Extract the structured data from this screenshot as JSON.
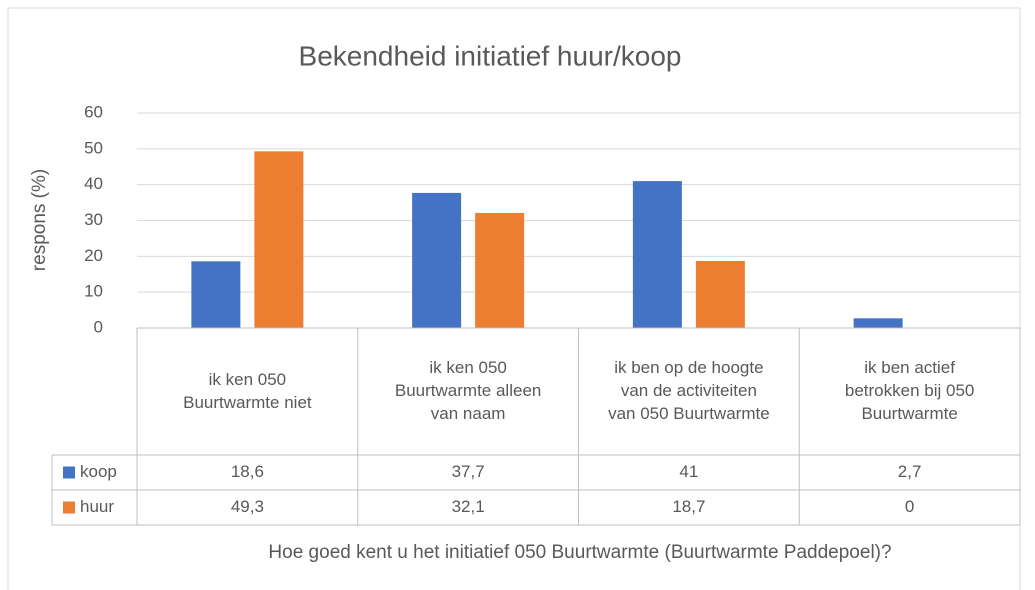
{
  "chart_data": {
    "type": "bar",
    "title": "Bekendheid initiatief huur/koop",
    "ylabel": "respons (%)",
    "xlabel": "Hoe goed kent u het initiatief 050 Buurtwarmte (Buurtwarmte Paddepoel)?",
    "categories": [
      "ik ken 050 Buurtwarmte niet",
      "ik ken 050 Buurtwarmte alleen van naam",
      "ik ben op de hoogte van de activiteiten van 050 Buurtwarmte",
      "ik ben actief betrokken bij 050 Buurtwarmte"
    ],
    "series": [
      {
        "name": "koop",
        "color": "#4472c4",
        "values": [
          18.6,
          37.7,
          41,
          2.7
        ],
        "value_labels": [
          "18,6",
          "37,7",
          "41",
          "2,7"
        ]
      },
      {
        "name": "huur",
        "color": "#ed7d31",
        "values": [
          49.3,
          32.1,
          18.7,
          0
        ],
        "value_labels": [
          "49,3",
          "32,1",
          "18,7",
          "0"
        ]
      }
    ],
    "ylim": [
      0,
      60
    ],
    "yticks": [
      0,
      10,
      20,
      30,
      40,
      50,
      60
    ],
    "grid": true,
    "data_table": true
  }
}
